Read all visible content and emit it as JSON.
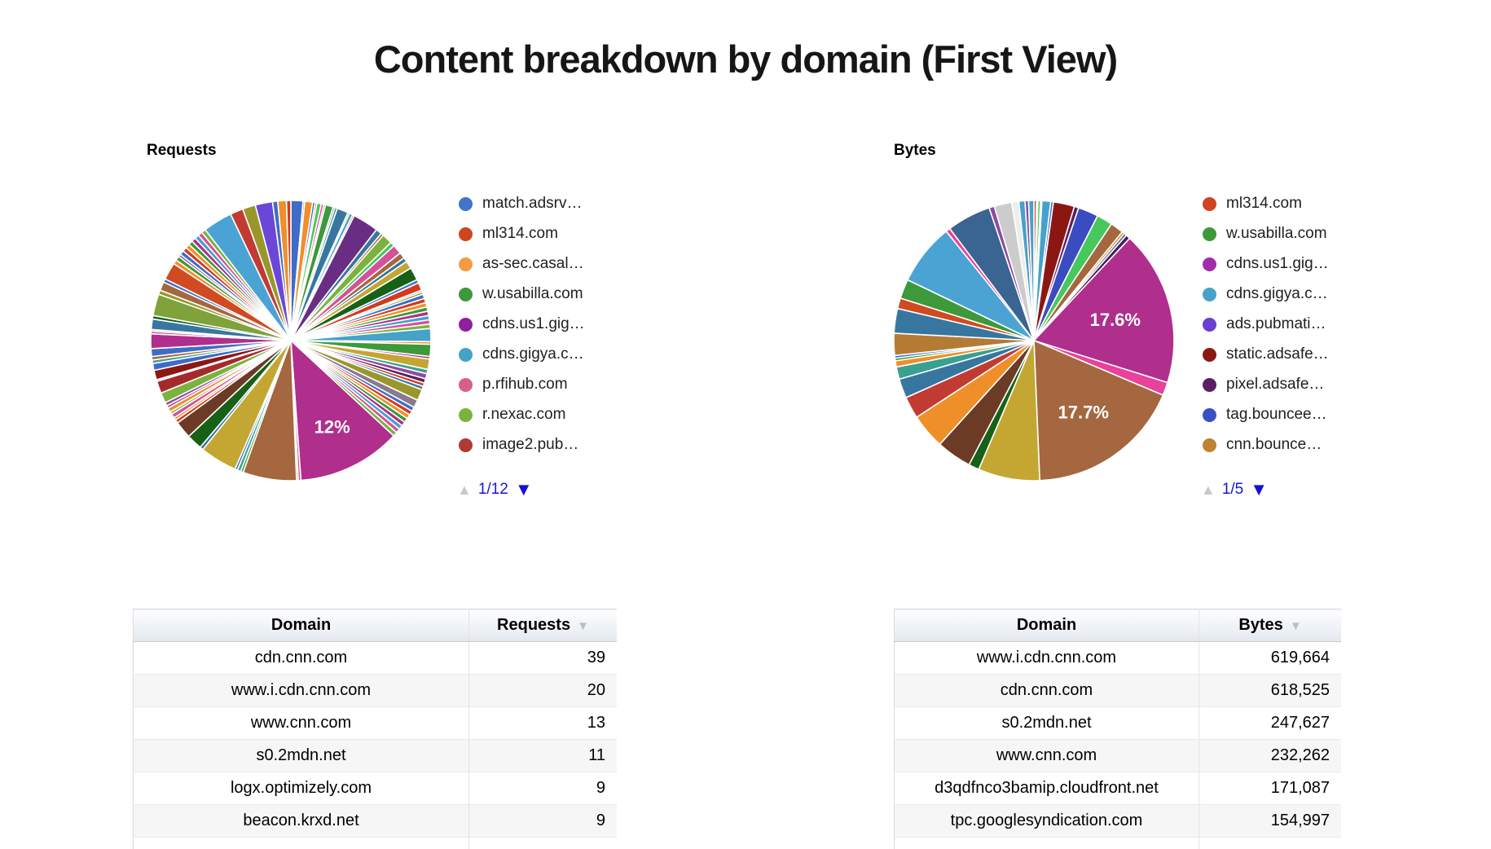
{
  "page": {
    "title": "Content breakdown by domain (First View)"
  },
  "chart_data": [
    {
      "type": "pie",
      "title": "Requests",
      "legend_position": "right",
      "legend": [
        {
          "label": "match.adsrv…",
          "color": "#4374c9"
        },
        {
          "label": "ml314.com",
          "color": "#cf4421"
        },
        {
          "label": "as-sec.casal…",
          "color": "#f59b42"
        },
        {
          "label": "w.usabilla.com",
          "color": "#3d9939"
        },
        {
          "label": "cdns.us1.gig…",
          "color": "#8f1f9c"
        },
        {
          "label": "cdns.gigya.c…",
          "color": "#45a2c8"
        },
        {
          "label": "p.rfihub.com",
          "color": "#d75f8b"
        },
        {
          "label": "r.nexac.com",
          "color": "#7bb33e"
        },
        {
          "label": "image2.pub…",
          "color": "#af3a33"
        }
      ],
      "pager": {
        "page": "1/12",
        "up_enabled": false,
        "down_enabled": true
      },
      "labeled_values": [
        {
          "label": "12%",
          "pct": 12
        }
      ],
      "slices": [
        {
          "p": 1.4,
          "c": "#3e6cc8"
        },
        {
          "p": 0.2,
          "c": "#d6519b"
        },
        {
          "p": 0.9,
          "c": "#ef8f2a"
        },
        {
          "p": 0.3,
          "c": "#3e6cc8"
        },
        {
          "p": 0.2,
          "c": "#d23b1c"
        },
        {
          "p": 0.5,
          "c": "#46c85c"
        },
        {
          "p": 0.3,
          "c": "#e8429b"
        },
        {
          "p": 0.2,
          "c": "#3d9939"
        },
        {
          "p": 0.9,
          "c": "#3d9939"
        },
        {
          "p": 0.2,
          "c": "#8f1f9c"
        },
        {
          "p": 0.3,
          "c": "#38a18f"
        },
        {
          "p": 1.3,
          "c": "#37779f"
        },
        {
          "p": 0.2,
          "c": "#ef8f2a"
        },
        {
          "p": 0.4,
          "c": "#45a2c8"
        },
        {
          "p": 0.2,
          "c": "#d23b1c"
        },
        {
          "p": 3.0,
          "c": "#6a2d84"
        },
        {
          "p": 0.7,
          "c": "#37779f"
        },
        {
          "p": 0.3,
          "c": "#a5673f"
        },
        {
          "p": 1.2,
          "c": "#7bb33e"
        },
        {
          "p": 0.5,
          "c": "#46c85c"
        },
        {
          "p": 1.1,
          "c": "#d6519b"
        },
        {
          "p": 0.7,
          "c": "#a5673f"
        },
        {
          "p": 0.5,
          "c": "#37779f"
        },
        {
          "p": 0.9,
          "c": "#c4a633"
        },
        {
          "p": 1.5,
          "c": "#176117"
        },
        {
          "p": 0.4,
          "c": "#3e6cc8"
        },
        {
          "p": 0.9,
          "c": "#d23b1c"
        },
        {
          "p": 0.2,
          "c": "#d6519b"
        },
        {
          "p": 0.3,
          "c": "#7bb33e"
        },
        {
          "p": 0.5,
          "c": "#3e6cc8"
        },
        {
          "p": 0.5,
          "c": "#d23b1c"
        },
        {
          "p": 0.5,
          "c": "#ef8f2a"
        },
        {
          "p": 0.5,
          "c": "#3d9939"
        },
        {
          "p": 0.5,
          "c": "#b02e8c"
        },
        {
          "p": 0.5,
          "c": "#45a2c8"
        },
        {
          "p": 0.5,
          "c": "#d6519b"
        },
        {
          "p": 0.5,
          "c": "#7bb33e"
        },
        {
          "p": 1.5,
          "c": "#45a2c8"
        },
        {
          "p": 0.3,
          "c": "#ef8f2a"
        },
        {
          "p": 1.4,
          "c": "#3d9939"
        },
        {
          "p": 0.3,
          "c": "#b02e8c"
        },
        {
          "p": 1.2,
          "c": "#c4a633"
        },
        {
          "p": 0.5,
          "c": "#38a18f"
        },
        {
          "p": 0.6,
          "c": "#8e4b9e"
        },
        {
          "p": 0.5,
          "c": "#5c1e63"
        },
        {
          "p": 0.4,
          "c": "#d23b1c"
        },
        {
          "p": 0.4,
          "c": "#37779f"
        },
        {
          "p": 1.3,
          "c": "#99972b"
        },
        {
          "p": 0.9,
          "c": "#8b7a8f"
        },
        {
          "p": 0.5,
          "c": "#3e6cc8"
        },
        {
          "p": 0.5,
          "c": "#d23b1c"
        },
        {
          "p": 0.5,
          "c": "#ef8f2a"
        },
        {
          "p": 0.5,
          "c": "#3d9939"
        },
        {
          "p": 0.5,
          "c": "#b02e8c"
        },
        {
          "p": 0.5,
          "c": "#45a2c8"
        },
        {
          "p": 0.5,
          "c": "#d6519b"
        },
        {
          "p": 0.5,
          "c": "#7bb33e"
        },
        {
          "p": 12.0,
          "c": "#b02e8c",
          "l": "12%",
          "lr": 0.68
        },
        {
          "p": 0.3,
          "c": "#d6519b"
        },
        {
          "p": 0.2,
          "c": "#46c85c"
        },
        {
          "p": 6.2,
          "c": "#a5673f"
        },
        {
          "p": 0.3,
          "c": "#3d9939"
        },
        {
          "p": 0.4,
          "c": "#38a18f"
        },
        {
          "p": 0.3,
          "c": "#3e6cc8"
        },
        {
          "p": 4.3,
          "c": "#c4a633"
        },
        {
          "p": 0.4,
          "c": "#37779f"
        },
        {
          "p": 1.8,
          "c": "#176117"
        },
        {
          "p": 2.0,
          "c": "#6b3b26"
        },
        {
          "p": 0.4,
          "c": "#d23b1c"
        },
        {
          "p": 0.3,
          "c": "#ef8f2a"
        },
        {
          "p": 0.5,
          "c": "#d6519b"
        },
        {
          "p": 0.3,
          "c": "#7bb33e"
        },
        {
          "p": 0.5,
          "c": "#ef8f2a"
        },
        {
          "p": 0.3,
          "c": "#b02e8c"
        },
        {
          "p": 0.4,
          "c": "#8e4b9e"
        },
        {
          "p": 1.2,
          "c": "#7bb33e"
        },
        {
          "p": 1.4,
          "c": "#a52a2a"
        },
        {
          "p": 0.2,
          "c": "#45a2c8"
        },
        {
          "p": 1.1,
          "c": "#8b1713"
        },
        {
          "p": 0.8,
          "c": "#3e6cc8"
        },
        {
          "p": 0.4,
          "c": "#38a18f"
        },
        {
          "p": 0.4,
          "c": "#a5673f"
        },
        {
          "p": 0.9,
          "c": "#3e6cc8"
        },
        {
          "p": 1.7,
          "c": "#b02e8c"
        },
        {
          "p": 0.3,
          "c": "#d6519b"
        },
        {
          "p": 0.2,
          "c": "#ef8f2a"
        },
        {
          "p": 1.2,
          "c": "#37779f"
        },
        {
          "p": 0.4,
          "c": "#176117"
        },
        {
          "p": 2.5,
          "c": "#7fa23b"
        },
        {
          "p": 0.5,
          "c": "#99972b"
        },
        {
          "p": 1.0,
          "c": "#a5673f"
        },
        {
          "p": 0.4,
          "c": "#3e6cc8"
        },
        {
          "p": 2.0,
          "c": "#d04a22"
        },
        {
          "p": 0.5,
          "c": "#ef8f2a"
        },
        {
          "p": 0.5,
          "c": "#3d9939"
        },
        {
          "p": 0.3,
          "c": "#8e4b9e"
        },
        {
          "p": 0.5,
          "c": "#3e6cc8"
        },
        {
          "p": 0.5,
          "c": "#d23b1c"
        },
        {
          "p": 0.5,
          "c": "#ef8f2a"
        },
        {
          "p": 0.5,
          "c": "#3d9939"
        },
        {
          "p": 0.5,
          "c": "#b02e8c"
        },
        {
          "p": 0.5,
          "c": "#45a2c8"
        },
        {
          "p": 0.5,
          "c": "#d6519b"
        },
        {
          "p": 0.5,
          "c": "#7bb33e"
        },
        {
          "p": 3.4,
          "c": "#4ba3d4"
        },
        {
          "p": 1.5,
          "c": "#c23b33"
        },
        {
          "p": 1.5,
          "c": "#99972b"
        },
        {
          "p": 2.0,
          "c": "#6c47d7"
        },
        {
          "p": 0.6,
          "c": "#3e6cc8"
        },
        {
          "p": 1.0,
          "c": "#ef8f2a"
        },
        {
          "p": 0.5,
          "c": "#d23b1c"
        }
      ]
    },
    {
      "type": "pie",
      "title": "Bytes",
      "legend_position": "right",
      "legend": [
        {
          "label": "ml314.com",
          "color": "#cf4421"
        },
        {
          "label": "w.usabilla.com",
          "color": "#3d9939"
        },
        {
          "label": "cdns.us1.gig…",
          "color": "#a32cab"
        },
        {
          "label": "cdns.gigya.c…",
          "color": "#45a2c8"
        },
        {
          "label": "ads.pubmati…",
          "color": "#6a3fd1"
        },
        {
          "label": "static.adsafe…",
          "color": "#8b1713"
        },
        {
          "label": "pixel.adsafe…",
          "color": "#5c1e63"
        },
        {
          "label": "tag.bouncee…",
          "color": "#3a50c2"
        },
        {
          "label": "cnn.bounce…",
          "color": "#bd8332"
        }
      ],
      "pager": {
        "page": "1/5",
        "up_enabled": false,
        "down_enabled": true
      },
      "labeled_values": [
        {
          "label": "17.6%",
          "pct": 17.6
        },
        {
          "label": "17.7%",
          "pct": 17.7
        }
      ],
      "slices": [
        {
          "p": 0.3,
          "c": "#d04a22"
        },
        {
          "p": 0.15,
          "c": "#3d9939"
        },
        {
          "p": 0.3,
          "c": "#46c85c"
        },
        {
          "p": 0.15,
          "c": "#b02e8c"
        },
        {
          "p": 1.0,
          "c": "#45a2c8"
        },
        {
          "p": 0.3,
          "c": "#3e6cc8"
        },
        {
          "p": 2.4,
          "c": "#8b1713"
        },
        {
          "p": 0.5,
          "c": "#5c1e63"
        },
        {
          "p": 2.3,
          "c": "#3b4cc0"
        },
        {
          "p": 1.8,
          "c": "#46c85c"
        },
        {
          "p": 1.5,
          "c": "#a5673f"
        },
        {
          "p": 0.3,
          "c": "#ef8f2a"
        },
        {
          "p": 0.3,
          "c": "#316395"
        },
        {
          "p": 0.5,
          "c": "#4a1a5c"
        },
        {
          "p": 17.6,
          "c": "#b02e8c",
          "l": "17.6%",
          "lr": 0.6
        },
        {
          "p": 1.5,
          "c": "#e8429b"
        },
        {
          "p": 17.7,
          "c": "#a5673f",
          "l": "17.7%",
          "lr": 0.62
        },
        {
          "p": 7.0,
          "c": "#c4a633"
        },
        {
          "p": 1.2,
          "c": "#176117"
        },
        {
          "p": 4.0,
          "c": "#6b3b26"
        },
        {
          "p": 4.0,
          "c": "#ef8f2a"
        },
        {
          "p": 2.5,
          "c": "#c23b33"
        },
        {
          "p": 2.2,
          "c": "#37779f"
        },
        {
          "p": 1.4,
          "c": "#38a18f"
        },
        {
          "p": 0.7,
          "c": "#ef8f2a"
        },
        {
          "p": 0.3,
          "c": "#3d9939"
        },
        {
          "p": 0.3,
          "c": "#3e6cc8"
        },
        {
          "p": 2.5,
          "c": "#b47b35"
        },
        {
          "p": 2.8,
          "c": "#37779f"
        },
        {
          "p": 1.2,
          "c": "#d04a22"
        },
        {
          "p": 2.2,
          "c": "#3d9939"
        },
        {
          "p": 7.0,
          "c": "#4ba3d4"
        },
        {
          "p": 0.5,
          "c": "#e8429b"
        },
        {
          "p": 5.0,
          "c": "#3a6491"
        },
        {
          "p": 0.6,
          "c": "#8e4b9e"
        },
        {
          "p": 2.0,
          "c": "#cccccc"
        },
        {
          "p": 0.8,
          "c": "#ededed"
        },
        {
          "p": 0.7,
          "c": "#45a2c8"
        },
        {
          "p": 0.4,
          "c": "#8e4b9e"
        },
        {
          "p": 0.6,
          "c": "#45a2c8"
        }
      ]
    }
  ],
  "tables": [
    {
      "headers": [
        "Domain",
        "Requests"
      ],
      "sorted_by": "Requests",
      "sort_icon": "▼",
      "rows": [
        [
          "cdn.cnn.com",
          "39"
        ],
        [
          "www.i.cdn.cnn.com",
          "20"
        ],
        [
          "www.cnn.com",
          "13"
        ],
        [
          "s0.2mdn.net",
          "11"
        ],
        [
          "logx.optimizely.com",
          "9"
        ],
        [
          "beacon.krxd.net",
          "9"
        ]
      ]
    },
    {
      "headers": [
        "Domain",
        "Bytes"
      ],
      "sorted_by": "Bytes",
      "sort_icon": "▼",
      "rows": [
        [
          "www.i.cdn.cnn.com",
          "619,664"
        ],
        [
          "cdn.cnn.com",
          "618,525"
        ],
        [
          "s0.2mdn.net",
          "247,627"
        ],
        [
          "www.cnn.com",
          "232,262"
        ],
        [
          "d3qdfnco3bamip.cloudfront.net",
          "171,087"
        ],
        [
          "tpc.googlesyndication.com",
          "154,997"
        ]
      ]
    }
  ],
  "pager_icons": {
    "up": "▲",
    "down": "▼"
  }
}
